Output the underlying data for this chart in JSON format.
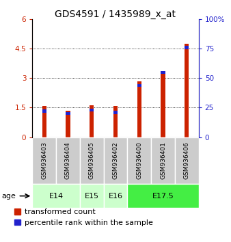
{
  "title": "GDS4591 / 1435989_x_at",
  "samples": [
    "GSM936403",
    "GSM936404",
    "GSM936405",
    "GSM936402",
    "GSM936400",
    "GSM936401",
    "GSM936406"
  ],
  "transformed_count": [
    1.58,
    1.35,
    1.62,
    1.6,
    2.85,
    3.25,
    4.75
  ],
  "percentile_rank": [
    22,
    20,
    23,
    21,
    44,
    55,
    76
  ],
  "ylim_left": [
    0,
    6
  ],
  "ylim_right": [
    0,
    100
  ],
  "yticks_left": [
    0,
    1.5,
    3,
    4.5,
    6
  ],
  "yticks_right": [
    0,
    25,
    50,
    75,
    100
  ],
  "bar_color_red": "#cc2200",
  "bar_color_blue": "#2222cc",
  "bar_width": 0.18,
  "blue_bar_width": 0.18,
  "background_color": "#ffffff",
  "sample_box_color": "#cccccc",
  "title_fontsize": 10,
  "tick_fontsize": 7.5,
  "label_fontsize": 6.5,
  "legend_fontsize": 8,
  "age_arrow_label": "age",
  "age_spans": [
    {
      "label": "E14",
      "start": 0,
      "end": 1,
      "color": "#ccffcc"
    },
    {
      "label": "E15",
      "start": 2,
      "end": 2,
      "color": "#ccffcc"
    },
    {
      "label": "E16",
      "start": 3,
      "end": 3,
      "color": "#ccffcc"
    },
    {
      "label": "E17.5",
      "start": 4,
      "end": 6,
      "color": "#44ee44"
    }
  ]
}
